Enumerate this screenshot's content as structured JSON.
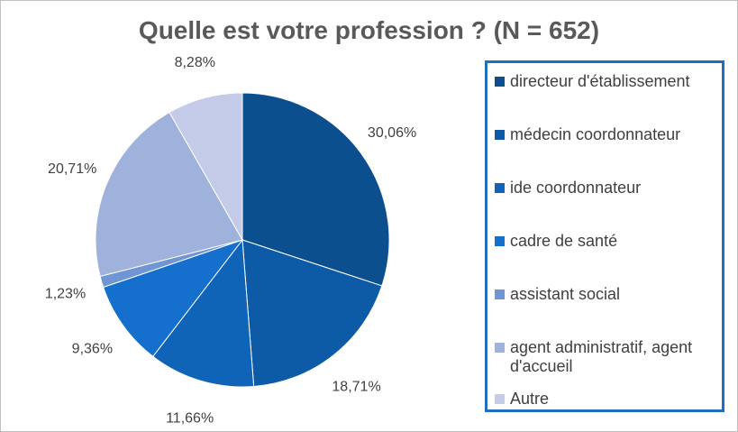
{
  "chart_data": {
    "type": "pie",
    "title": "Quelle est votre profession ? (N = 652)",
    "legend_position": "right",
    "slices": [
      {
        "label": "directeur d'établissement",
        "value": 30.06,
        "value_label": "30,06%",
        "color": "#0b4f8e"
      },
      {
        "label": "médecin coordonnateur",
        "value": 18.71,
        "value_label": "18,71%",
        "color": "#0d5aa6"
      },
      {
        "label": "ide coordonnateur",
        "value": 11.66,
        "value_label": "11,66%",
        "color": "#1064b8"
      },
      {
        "label": "cadre de santé",
        "value": 9.36,
        "value_label": "9,36%",
        "color": "#1470cc"
      },
      {
        "label": "assistant social",
        "value": 1.23,
        "value_label": "1,23%",
        "color": "#6f95d4"
      },
      {
        "label": "agent administratif, agent d'accueil",
        "value": 20.71,
        "value_label": "20,71%",
        "color": "#9fb2dc"
      },
      {
        "label": "Autre",
        "value": 8.28,
        "value_label": "8,28%",
        "color": "#c3cbe8"
      }
    ]
  }
}
